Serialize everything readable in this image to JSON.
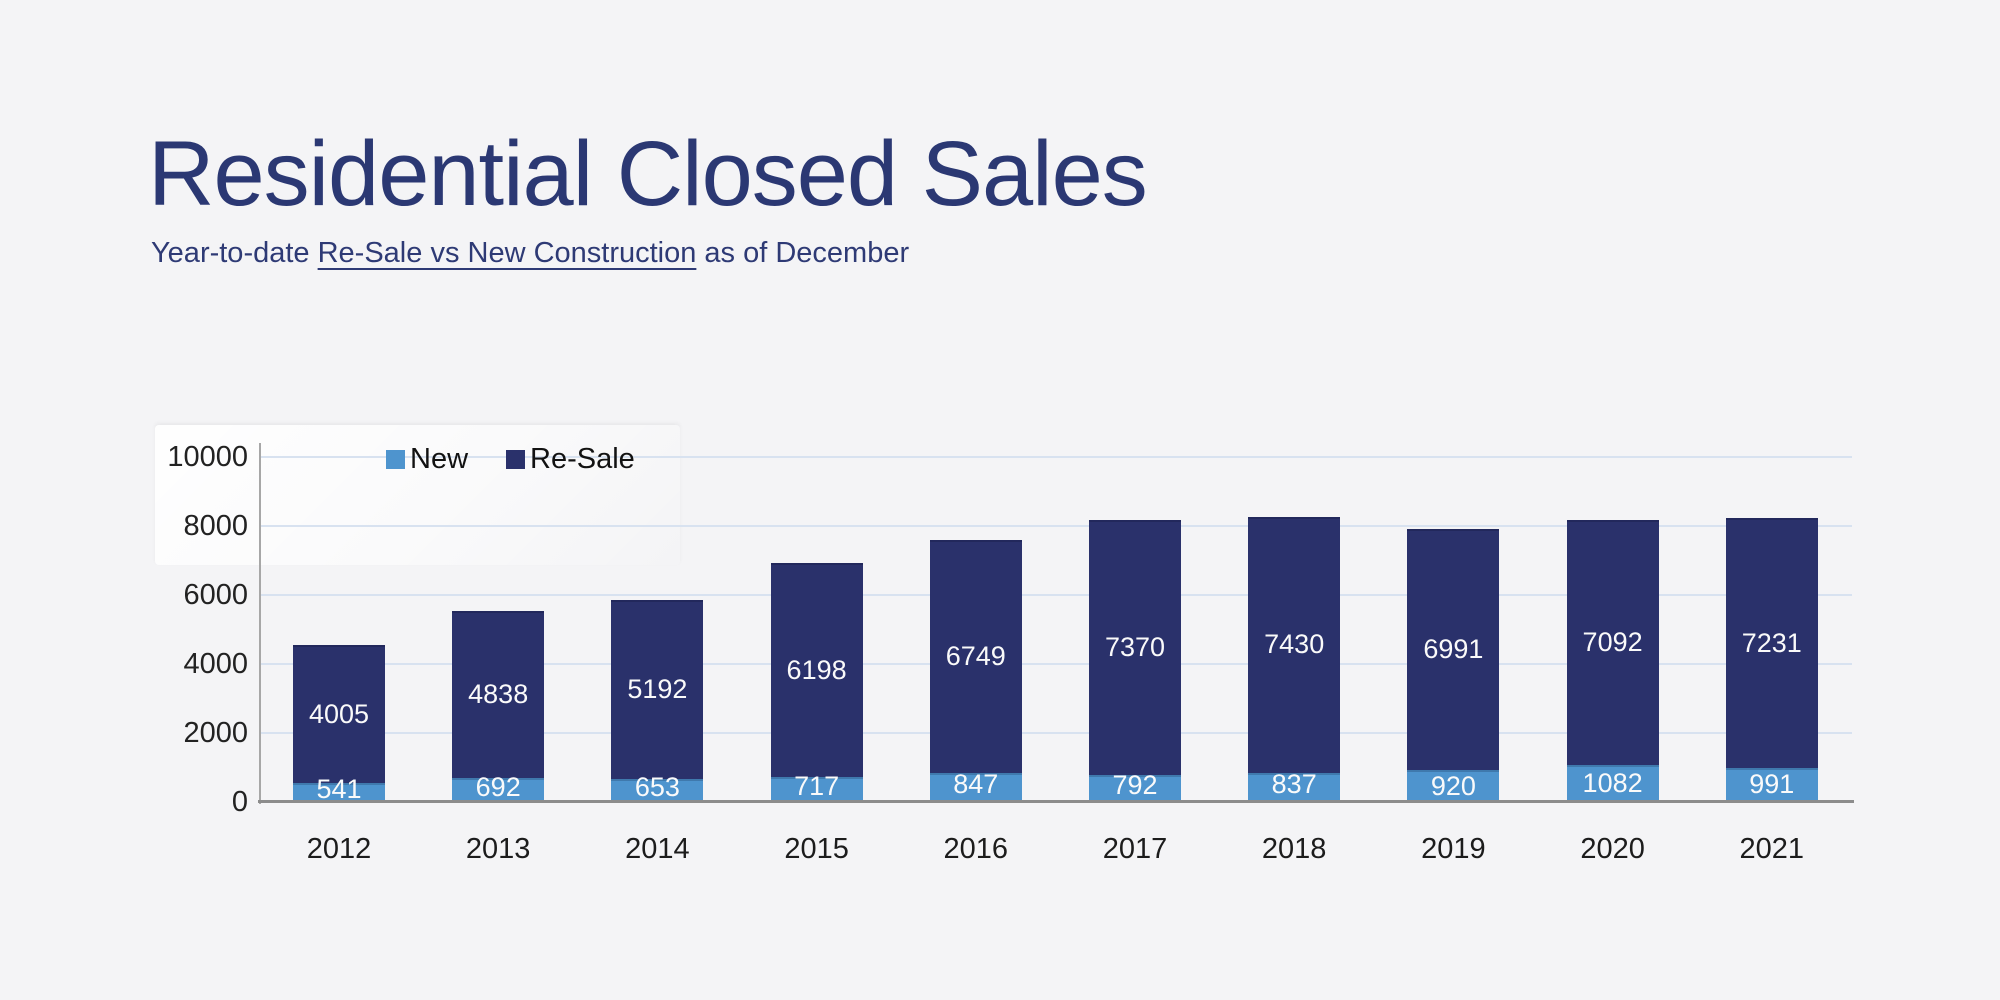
{
  "header": {
    "title": "Residential Closed Sales",
    "subtitle_prefix": "Year-to-date ",
    "subtitle_emphasis": "Re-Sale vs New Construction",
    "subtitle_suffix": " as of December"
  },
  "chart_data": {
    "type": "bar",
    "stacked": true,
    "title": "Residential Closed Sales",
    "subtitle": "Year-to-date Re-Sale vs New Construction as of December",
    "categories": [
      "2012",
      "2013",
      "2014",
      "2015",
      "2016",
      "2017",
      "2018",
      "2019",
      "2020",
      "2021"
    ],
    "series": [
      {
        "name": "New",
        "color": "#4E94CE",
        "values": [
          541,
          692,
          653,
          717,
          847,
          792,
          837,
          920,
          1082,
          991
        ]
      },
      {
        "name": "Re-Sale",
        "color": "#2A316B",
        "values": [
          4005,
          4838,
          5192,
          6198,
          6749,
          7370,
          7430,
          6991,
          7092,
          7231
        ]
      }
    ],
    "ylim": [
      0,
      10000
    ],
    "yticks": [
      0,
      2000,
      4000,
      6000,
      8000,
      10000
    ],
    "grid": true,
    "legend_position": "top-inside",
    "data_labels": "white values centered in each segment"
  },
  "colors": {
    "background": "#F4F4F6",
    "title_text": "#2B3873",
    "gridline": "#D8E2F0",
    "y_axis_line": "#A7A7A7",
    "baseline": "#8C8C8C",
    "tick_text": "#222222",
    "bar_label_text": "#FAFAFA",
    "series_new": "#4E94CE",
    "series_resale": "#2A316B"
  }
}
